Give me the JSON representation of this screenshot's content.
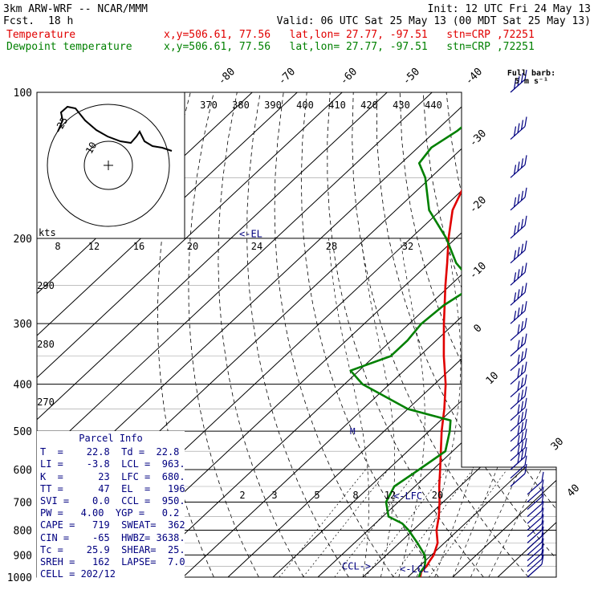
{
  "header": {
    "model": "3km ARW-WRF -- NCAR/MMM",
    "init": "Init: 12 UTC Fri 24 May 13",
    "fcst_label": "Fcst.",
    "fcst_value": "18 h",
    "valid": "Valid: 06 UTC Sat 25 May 13 (00 MDT Sat 25 May 13)",
    "temp_label": "Temperature",
    "temp_info": "x,y=506.61, 77.56   lat,lon= 27.77, -97.51   stn=CRP ,72251",
    "dew_label": "Dewpoint temperature",
    "dew_info": "x,y=506.61, 77.56   lat,lon= 27.77, -97.51   stn=CRP ,72251"
  },
  "colors": {
    "temperature": "#e00000",
    "dewpoint": "#008000",
    "annotation": "#000080",
    "grid": "#000000"
  },
  "parcel_info": {
    "title": "Parcel Info",
    "rows": [
      "T  =    22.8  Td =  22.8",
      "LI =    -3.8  LCL =  963.",
      "K  =      23  LFC =  680.",
      "TT =      47  EL  =   196",
      "SVI =    0.0  CCL =  950.",
      "PW =   4.00  YGP =   0.2",
      "CAPE =   719  SWEAT=  362",
      "CIN =    -65  HWBZ= 3638.",
      "Tc =    25.9  SHEAR=  25.",
      "SREH =   162  LAPSE=  7.0",
      "CELL = 202/12"
    ]
  },
  "hodograph": {
    "units": "kts",
    "ring_labels": [
      "10",
      "25"
    ]
  },
  "wind_legend": {
    "line1": "Full barb:",
    "line2": "5 m s⁻¹"
  },
  "chart_data": {
    "type": "line",
    "y_axis": "pressure (hPa), log scale",
    "ylim": [
      1000,
      100
    ],
    "pressure_ticks": [
      "100",
      "200",
      "300",
      "400",
      "500",
      "600",
      "700",
      "800",
      "900",
      "1000"
    ],
    "isotherm_labels": [
      "-80",
      "-70",
      "-60",
      "-50",
      "-40",
      "-30",
      "-20",
      "-10",
      "0",
      "10",
      "30",
      "40"
    ],
    "theta_labels": [
      "370",
      "380",
      "390",
      "400",
      "410",
      "420",
      "430",
      "440"
    ],
    "mixing_ratio_labels": [
      "2",
      "3",
      "5",
      "8",
      "12",
      "20"
    ],
    "dry_adiabat_labels": [
      "290",
      "280",
      "270"
    ],
    "hodo_speed_labels": [
      "8",
      "12",
      "16",
      "20",
      "24",
      "28",
      "32"
    ],
    "levels": {
      "el": "<-EL",
      "lfc": "<-LFC",
      "lcl": "<-LCL",
      "ccl": "CCL->"
    },
    "series": [
      {
        "name": "Temperature",
        "color": "#e00000",
        "points": [
          [
            1000,
            22.8
          ],
          [
            975,
            21.7
          ],
          [
            950,
            21.6
          ],
          [
            925,
            21.0
          ],
          [
            900,
            20.5
          ],
          [
            850,
            18.5
          ],
          [
            800,
            15.2
          ],
          [
            750,
            12.5
          ],
          [
            700,
            9.2
          ],
          [
            650,
            5.4
          ],
          [
            600,
            1.6
          ],
          [
            550,
            -2.6
          ],
          [
            500,
            -7.2
          ],
          [
            450,
            -11.9
          ],
          [
            400,
            -17.5
          ],
          [
            350,
            -24.6
          ],
          [
            300,
            -32.3
          ],
          [
            250,
            -41.1
          ],
          [
            225,
            -46.0
          ],
          [
            200,
            -51.6
          ],
          [
            175,
            -57.4
          ],
          [
            150,
            -61.7
          ],
          [
            140,
            -62.6
          ],
          [
            130,
            -61.8
          ],
          [
            120,
            -60.6
          ],
          [
            110,
            -60.2
          ],
          [
            100,
            -60.9
          ]
        ]
      },
      {
        "name": "Dewpoint temperature",
        "color": "#008000",
        "points": [
          [
            1000,
            22.5
          ],
          [
            975,
            21.6
          ],
          [
            950,
            21.2
          ],
          [
            925,
            20.0
          ],
          [
            900,
            18.5
          ],
          [
            850,
            14.0
          ],
          [
            800,
            9.0
          ],
          [
            775,
            6.0
          ],
          [
            750,
            1.3
          ],
          [
            700,
            -2.7
          ],
          [
            650,
            -4.6
          ],
          [
            600,
            -3.1
          ],
          [
            550,
            -1.6
          ],
          [
            500,
            -5.4
          ],
          [
            475,
            -7.8
          ],
          [
            450,
            -20.0
          ],
          [
            400,
            -36.0
          ],
          [
            375,
            -41.9
          ],
          [
            350,
            -36.4
          ],
          [
            325,
            -36.4
          ],
          [
            300,
            -37.3
          ],
          [
            275,
            -36.7
          ],
          [
            250,
            -34.5
          ],
          [
            225,
            -44.0
          ],
          [
            200,
            -52.1
          ],
          [
            175,
            -62.6
          ],
          [
            150,
            -71.2
          ],
          [
            140,
            -76.0
          ],
          [
            130,
            -77.0
          ],
          [
            120,
            -75.2
          ],
          [
            110,
            -74.6
          ],
          [
            100,
            -77.6
          ]
        ]
      }
    ]
  }
}
